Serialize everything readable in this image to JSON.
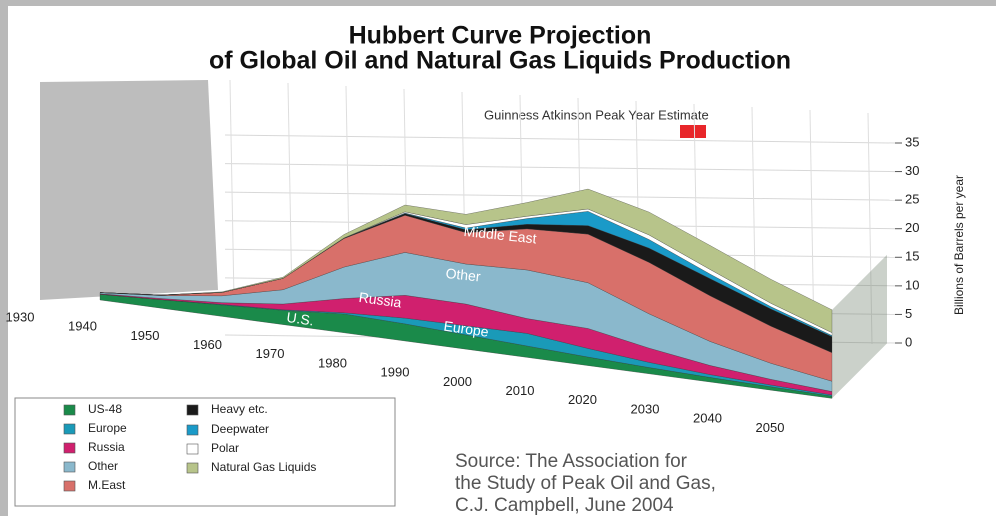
{
  "chart_data": {
    "type": "stacked_area_3d",
    "title_lines": [
      "Hubbert Curve Projection",
      "of Global Oil and Natural Gas Liquids Production"
    ],
    "y_axis_label": "Billions of Barrels per year",
    "annotation": "Guinness Atkinson Peak Year Estimate",
    "annotation_color": "#e8262a",
    "area_labels": [
      "Middle East",
      "Other",
      "Russia",
      "U.S.",
      "Europe"
    ],
    "source_lines": [
      "Source: The Association for",
      "the Study of Peak Oil and Gas,",
      "C.J. Campbell, June 2004"
    ],
    "categories": [
      "1930",
      "1940",
      "1950",
      "1960",
      "1970",
      "1980",
      "1990",
      "2000",
      "2010",
      "2020",
      "2030",
      "2040",
      "2050"
    ],
    "series": [
      {
        "name": "US-48",
        "color": "#1a8a4a",
        "values": [
          1.0,
          1.5,
          2.0,
          2.5,
          3.3,
          3.0,
          2.5,
          2.0,
          1.5,
          1.1,
          0.8,
          0.6,
          0.4
        ]
      },
      {
        "name": "Europe",
        "color": "#1a9ab8",
        "values": [
          0,
          0,
          0.1,
          0.1,
          0.2,
          1.0,
          1.6,
          2.2,
          1.5,
          0.9,
          0.5,
          0.3,
          0.2
        ]
      },
      {
        "name": "Russia",
        "color": "#d0206e",
        "values": [
          0.1,
          0.2,
          0.3,
          1.0,
          2.5,
          4.0,
          3.8,
          2.6,
          3.5,
          2.5,
          1.6,
          1.0,
          0.6
        ]
      },
      {
        "name": "Other",
        "color": "#8ab8cc",
        "values": [
          0.2,
          0.5,
          1.2,
          2.5,
          5.5,
          7.5,
          7.0,
          8.5,
          8.0,
          6.0,
          4.2,
          2.8,
          1.8
        ]
      },
      {
        "name": "M.East",
        "color": "#d8706a",
        "values": [
          0,
          0.1,
          0.6,
          2.0,
          5.0,
          6.5,
          5.5,
          7.2,
          8.5,
          9.0,
          8.0,
          6.5,
          5.0
        ]
      },
      {
        "name": "Heavy etc.",
        "color": "#1a1a1a",
        "values": [
          0,
          0,
          0,
          0,
          0.1,
          0.3,
          0.5,
          0.8,
          1.5,
          2.5,
          3.0,
          3.0,
          2.8
        ]
      },
      {
        "name": "Deepwater",
        "color": "#1a9ac8",
        "values": [
          0,
          0,
          0,
          0,
          0,
          0.1,
          0.3,
          1.0,
          2.5,
          1.5,
          0.8,
          0.4,
          0.2
        ]
      },
      {
        "name": "Polar",
        "color": "#ffffff",
        "values": [
          0,
          0,
          0,
          0,
          0,
          0.2,
          0.6,
          0.4,
          0.4,
          0.8,
          0.8,
          0.6,
          0.5
        ]
      },
      {
        "name": "Natural Gas Liquids",
        "color": "#b7c48a",
        "values": [
          0,
          0,
          0.1,
          0.2,
          0.6,
          1.2,
          1.8,
          2.4,
          3.5,
          4.0,
          4.2,
          4.2,
          4.0
        ]
      }
    ],
    "ylim": [
      0,
      35
    ],
    "yticks": [
      0,
      5,
      10,
      15,
      20,
      25,
      30,
      35
    ],
    "grid": true
  }
}
